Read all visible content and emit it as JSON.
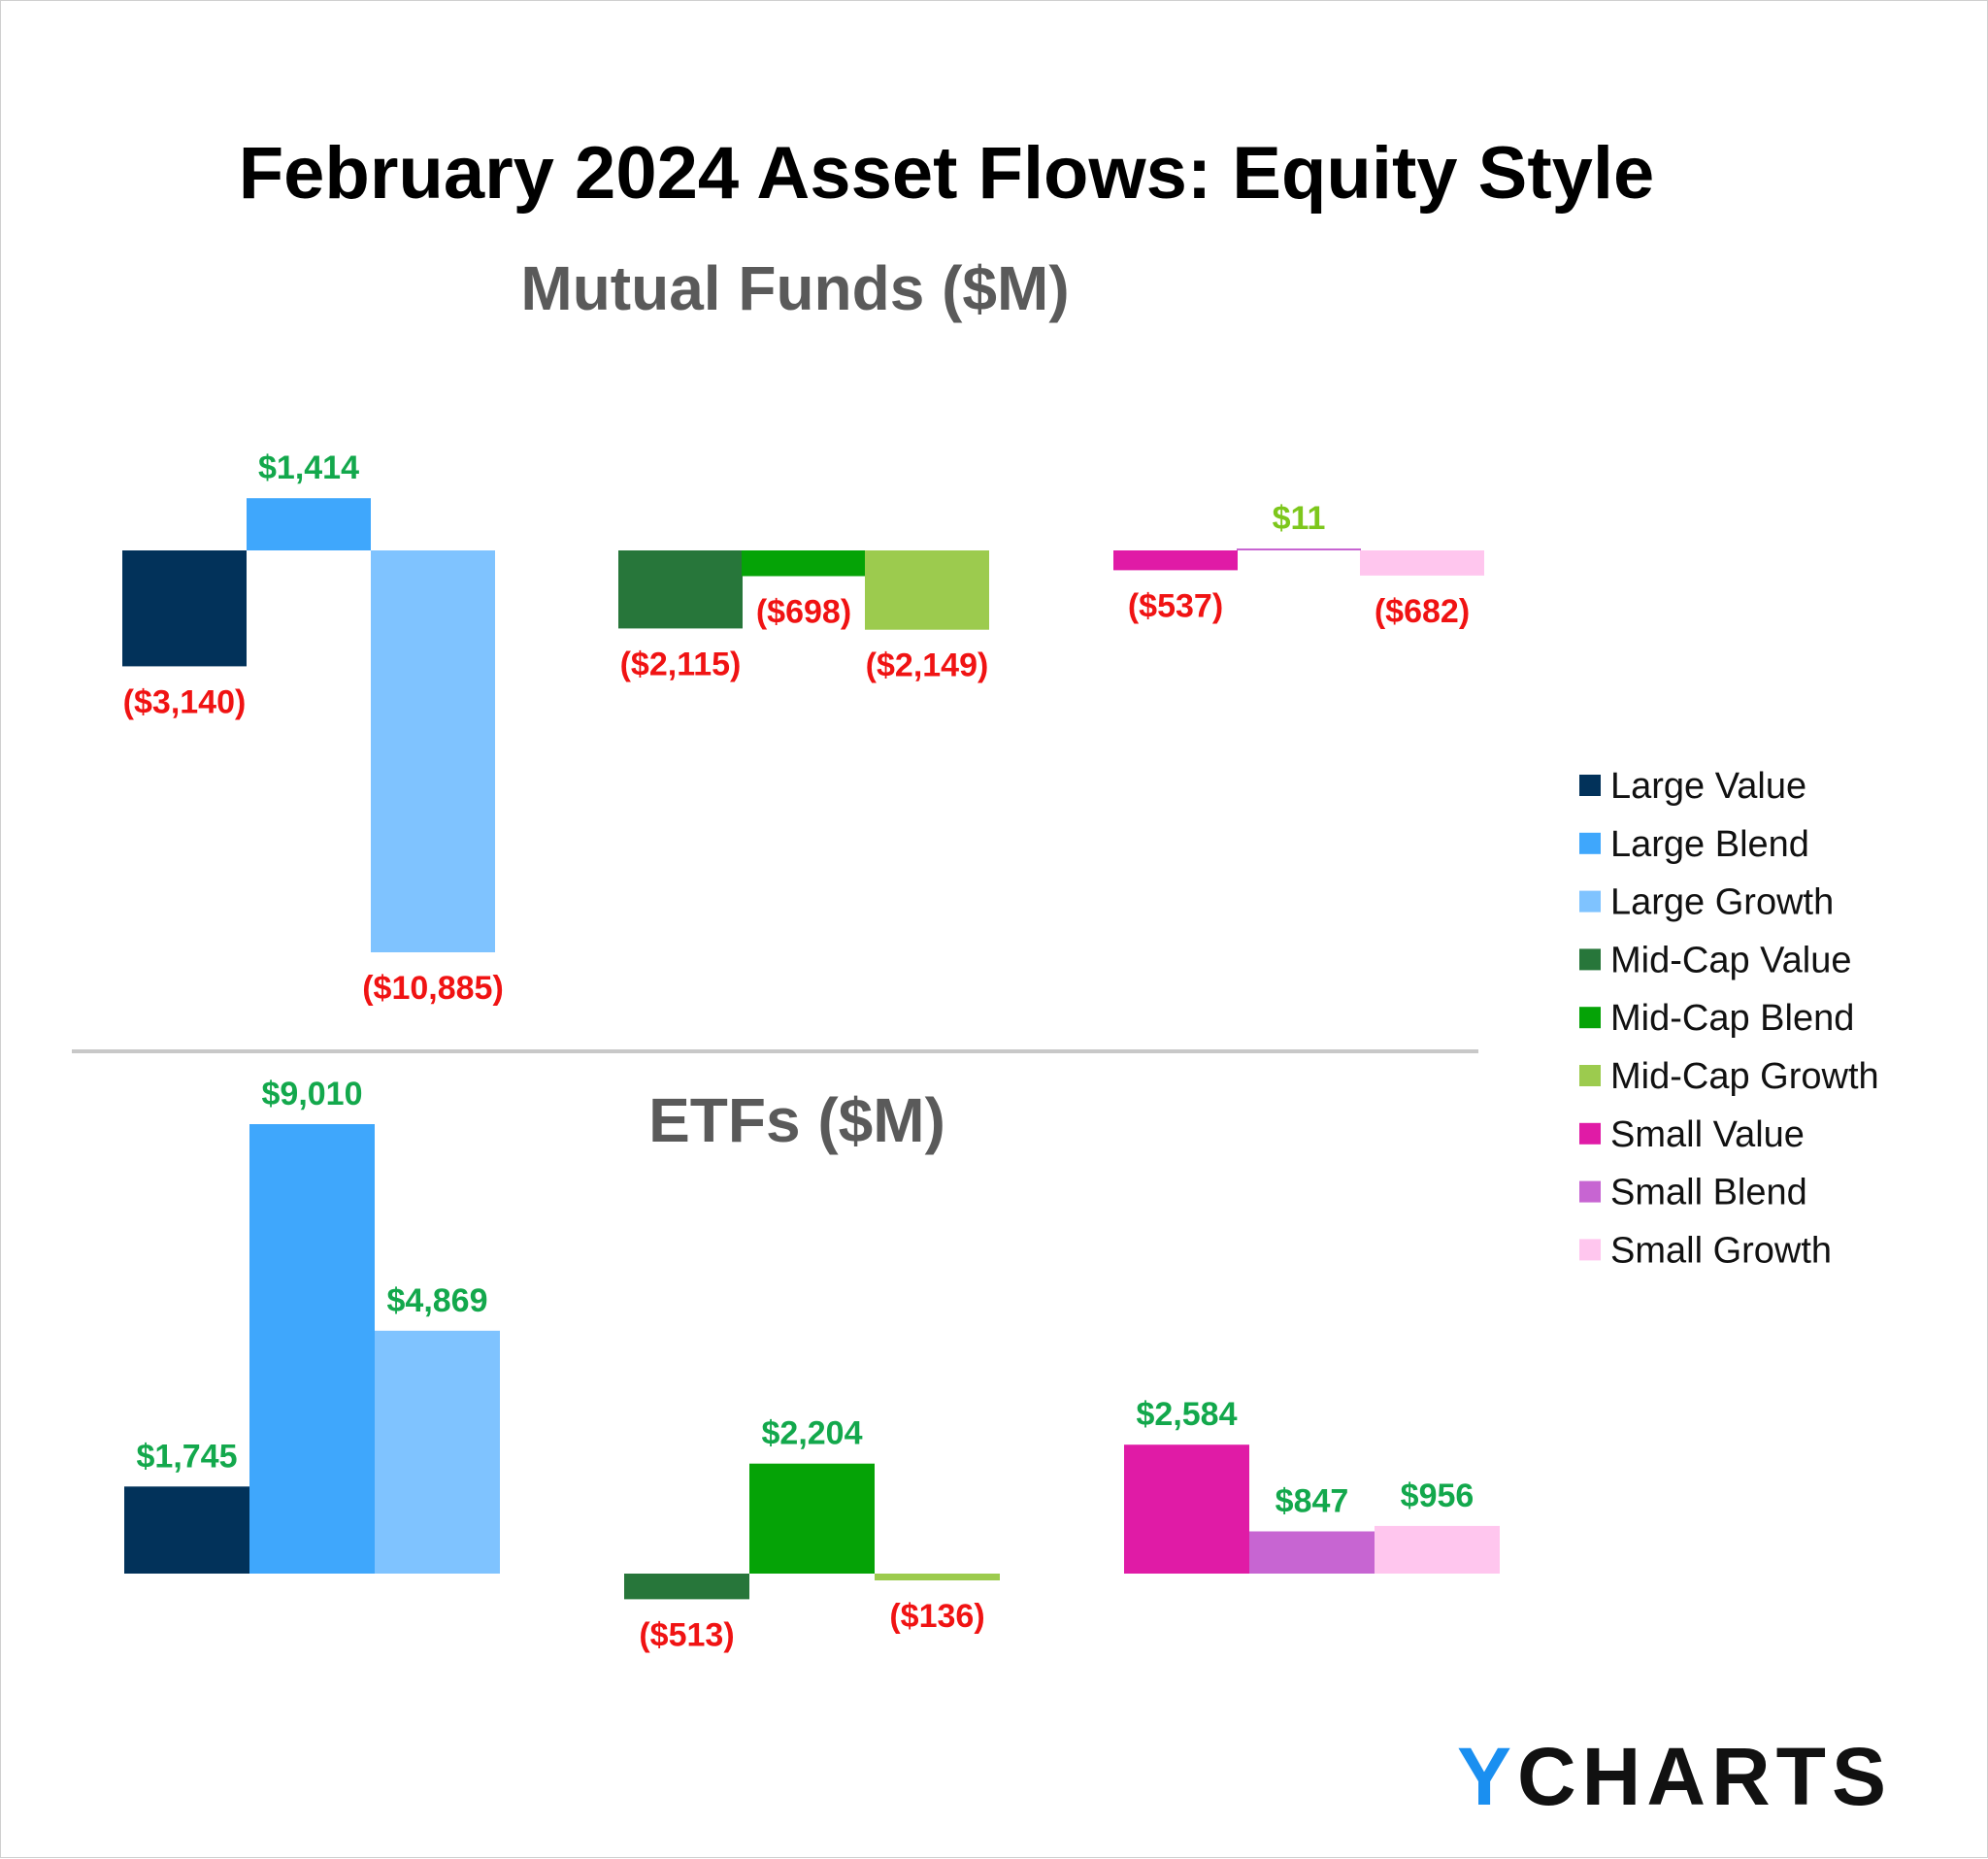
{
  "chart_data": {
    "type": "bar",
    "title": "February 2024 Asset Flows: Equity Style",
    "units": "$M",
    "categories": [
      "Large Value",
      "Large Blend",
      "Large Growth",
      "Mid-Cap Value",
      "Mid-Cap Blend",
      "Mid-Cap Growth",
      "Small Value",
      "Small Blend",
      "Small Growth"
    ],
    "colors": [
      "#02325a",
      "#3fa7fc",
      "#7fc3ff",
      "#27763a",
      "#05a306",
      "#9ccb4e",
      "#e01ba6",
      "#c765d2",
      "#ffc6ee"
    ],
    "panels": [
      {
        "subtitle": "Mutual Funds ($M)",
        "values": [
          -3140,
          1414,
          -10885,
          -2115,
          -698,
          -2149,
          -537,
          11,
          -682
        ],
        "labels": [
          "($3,140)",
          "$1,414",
          "($10,885)",
          "($2,115)",
          "($698)",
          "($2,149)",
          "($537)",
          "$11",
          "($682)"
        ]
      },
      {
        "subtitle": "ETFs ($M)",
        "values": [
          1745,
          9010,
          4869,
          -513,
          2204,
          -136,
          2584,
          847,
          956
        ],
        "labels": [
          "$1,745",
          "$9,010",
          "$4,869",
          "($513)",
          "$2,204",
          "($136)",
          "$2,584",
          "$847",
          "$956"
        ]
      }
    ],
    "legend_position": "right",
    "grid": false,
    "positive_label_color": "#13a84c",
    "negative_label_color": "#f01313",
    "small_value_label_color": "#7dc71c"
  },
  "brand": {
    "logo_y": "Y",
    "logo_rest": "CHARTS",
    "logo_y_color": "#1a8ff0",
    "logo_color": "#111111"
  }
}
